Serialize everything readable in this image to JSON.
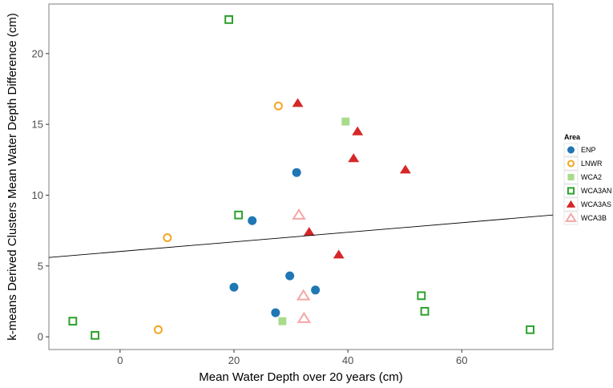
{
  "chart_data": {
    "type": "scatter",
    "title": "",
    "xlabel": "Mean Water Depth over 20 years (cm)",
    "ylabel": "k-means Derived Clusters Mean Water Depth Difference (cm)",
    "xlim": [
      -12.5,
      76
    ],
    "ylim": [
      -0.9,
      23.5
    ],
    "x_ticks": [
      0,
      20,
      40,
      60
    ],
    "y_ticks": [
      0,
      5,
      10,
      15,
      20
    ],
    "grid": false,
    "legend": {
      "title": "Area",
      "placement": "right"
    },
    "trend_line": {
      "type": "linear",
      "color": "#000000",
      "points": [
        [
          -12.5,
          5.6
        ],
        [
          76,
          8.6
        ]
      ]
    },
    "series": [
      {
        "name": "ENP",
        "marker": "circle-filled",
        "color": "#1f77b4",
        "points": [
          [
            20,
            3.5
          ],
          [
            23.2,
            8.2
          ],
          [
            27.3,
            1.7
          ],
          [
            29.8,
            4.3
          ],
          [
            31,
            11.6
          ],
          [
            34.3,
            3.3
          ]
        ]
      },
      {
        "name": "LNWR",
        "marker": "circle-open",
        "color": "#f5a623",
        "points": [
          [
            6.7,
            0.5
          ],
          [
            8.3,
            7.0
          ],
          [
            27.8,
            16.3
          ]
        ]
      },
      {
        "name": "WCA2",
        "marker": "square-filled",
        "color": "#a8dc8c",
        "points": [
          [
            28.5,
            1.1
          ],
          [
            39.6,
            15.2
          ]
        ]
      },
      {
        "name": "WCA3AN",
        "marker": "square-open",
        "color": "#2ca02c",
        "points": [
          [
            -8.3,
            1.1
          ],
          [
            -4.4,
            0.1
          ],
          [
            19.1,
            22.4
          ],
          [
            20.8,
            8.6
          ],
          [
            52.9,
            2.9
          ],
          [
            53.5,
            1.8
          ],
          [
            72,
            0.5
          ]
        ]
      },
      {
        "name": "WCA3AS",
        "marker": "triangle-filled",
        "color": "#d62728",
        "points": [
          [
            31.2,
            16.5
          ],
          [
            33.2,
            7.4
          ],
          [
            38.4,
            5.8
          ],
          [
            41,
            12.6
          ],
          [
            41.7,
            14.5
          ],
          [
            50.1,
            11.8
          ]
        ]
      },
      {
        "name": "WCA3B",
        "marker": "triangle-open",
        "color": "#f4a6a6",
        "points": [
          [
            31.4,
            8.6
          ],
          [
            32.2,
            2.9
          ],
          [
            32.3,
            1.3
          ]
        ]
      }
    ]
  }
}
